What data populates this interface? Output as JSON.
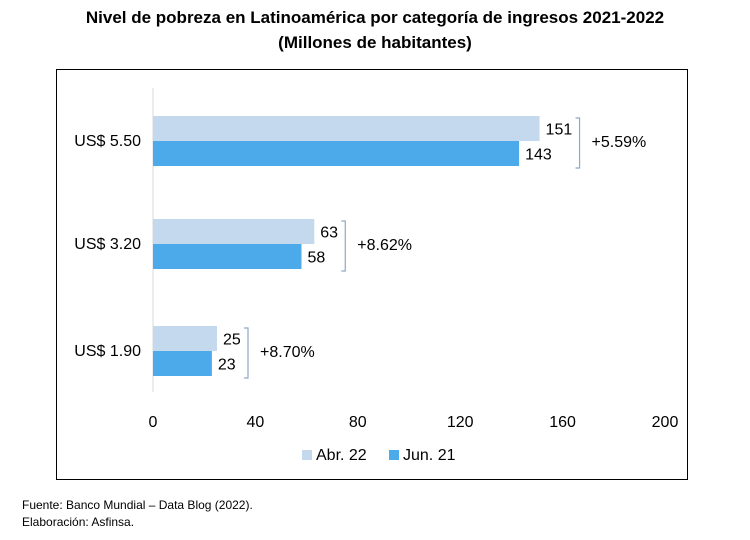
{
  "title": "Nivel de pobreza en Latinoamérica por categoría de ingresos 2021-2022",
  "subtitle": "(Millones de habitantes)",
  "source": "Fuente: Banco Mundial – Data Blog (2022).",
  "credit": "Elaboración: Asfinsa.",
  "chart_data": {
    "type": "bar",
    "orientation": "horizontal",
    "title": "Nivel de pobreza en Latinoamérica por categoría de ingresos 2021-2022",
    "subtitle": "(Millones de habitantes)",
    "categories": [
      "US$ 5.50",
      "US$ 3.20",
      "US$ 1.90"
    ],
    "series": [
      {
        "name": "Abr. 22",
        "values": [
          151,
          63,
          25
        ],
        "color": "#c5d9ee"
      },
      {
        "name": "Jun. 21",
        "values": [
          143,
          58,
          23
        ],
        "color": "#4daaea"
      }
    ],
    "annotations": [
      "+5.59%",
      "+8.62%",
      "+8.70%"
    ],
    "xlim": [
      0,
      200
    ],
    "xticks": [
      0,
      40,
      80,
      120,
      160,
      200
    ],
    "legend_position": "bottom",
    "grid": false
  }
}
